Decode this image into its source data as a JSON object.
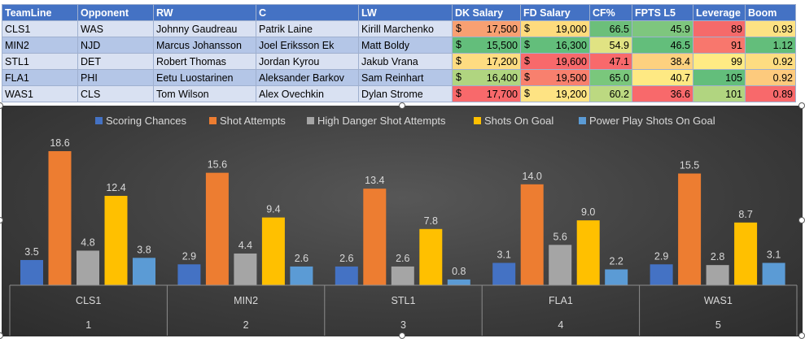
{
  "table": {
    "headers": [
      "TeamLine",
      "Opponent",
      "RW",
      "C",
      "LW",
      "DK Salary",
      "FD Salary",
      "CF%",
      "FPTS L5",
      "Leverage",
      "Boom"
    ],
    "currency": "$",
    "rows": [
      {
        "team": "CLS1",
        "opp": "WAS",
        "rw": "Johnny Gaudreau",
        "c": "Patrik Laine",
        "lw": "Kirill Marchenko",
        "dk": "17,500",
        "fd": "19,000",
        "cf": "66.5",
        "fpts": "45.9",
        "lev": "89",
        "boom": "0.93",
        "colors": {
          "dk": "#f8a072",
          "fd": "#fedb7d",
          "cf": "#6cbf7a",
          "fpts": "#7ec67e",
          "lev": "#f56a6a",
          "boom": "#fde283"
        }
      },
      {
        "team": "MIN2",
        "opp": "NJD",
        "rw": "Marcus Johansson",
        "c": "Joel Eriksson Ek",
        "lw": "Matt Boldy",
        "dk": "15,500",
        "fd": "16,300",
        "cf": "54.9",
        "fpts": "46.5",
        "lev": "91",
        "boom": "1.12",
        "colors": {
          "dk": "#63be7b",
          "fd": "#63be7b",
          "cf": "#e0e383",
          "fpts": "#63be7b",
          "lev": "#f8776d",
          "boom": "#63be7b"
        }
      },
      {
        "team": "STL1",
        "opp": "DET",
        "rw": "Robert Thomas",
        "c": "Jordan Kyrou",
        "lw": "Jakub Vrana",
        "dk": "17,200",
        "fd": "19,600",
        "cf": "47.1",
        "fpts": "38.4",
        "lev": "99",
        "boom": "0.92",
        "colors": {
          "dk": "#fedc81",
          "fd": "#f8696b",
          "cf": "#f8696b",
          "fpts": "#fdd17f",
          "lev": "#ffeb84",
          "boom": "#fedd81"
        }
      },
      {
        "team": "FLA1",
        "opp": "PHI",
        "rw": "Eetu Luostarinen",
        "c": "Aleksander Barkov",
        "lw": "Sam Reinhart",
        "dk": "16,400",
        "fd": "19,500",
        "cf": "65.0",
        "fpts": "40.7",
        "lev": "105",
        "boom": "0.92",
        "colors": {
          "dk": "#b0d580",
          "fd": "#f8806e",
          "cf": "#7ac77c",
          "fpts": "#fee983",
          "lev": "#63be7b",
          "boom": "#fdca7d"
        }
      },
      {
        "team": "WAS1",
        "opp": "CLS",
        "rw": "Tom Wilson",
        "c": "Alex Ovechkin",
        "lw": "Dylan Strome",
        "dk": "17,700",
        "fd": "19,200",
        "cf": "60.2",
        "fpts": "36.6",
        "lev": "101",
        "boom": "0.89",
        "colors": {
          "dk": "#f8696b",
          "fd": "#fee383",
          "cf": "#bcd981",
          "fpts": "#f8696b",
          "lev": "#b1d580",
          "boom": "#f8696b"
        }
      }
    ]
  },
  "chart_data": {
    "type": "bar",
    "title": "",
    "xlabel": "",
    "ylabel": "",
    "ylim": [
      0,
      20
    ],
    "grid": false,
    "legend_position": "top",
    "categories": [
      {
        "label": "CLS1",
        "sub": "1"
      },
      {
        "label": "MIN2",
        "sub": "2"
      },
      {
        "label": "STL1",
        "sub": "3"
      },
      {
        "label": "FLA1",
        "sub": "4"
      },
      {
        "label": "WAS1",
        "sub": "5"
      }
    ],
    "series": [
      {
        "name": "Scoring Chances",
        "color": "#4472c4",
        "values": [
          3.5,
          2.9,
          2.6,
          3.1,
          2.9
        ]
      },
      {
        "name": "Shot Attempts",
        "color": "#ed7d31",
        "values": [
          18.6,
          15.6,
          13.4,
          14.0,
          15.5
        ]
      },
      {
        "name": "High Danger Shot Attempts",
        "color": "#a5a5a5",
        "values": [
          4.8,
          4.4,
          2.6,
          5.6,
          2.8
        ]
      },
      {
        "name": "Shots On Goal",
        "color": "#ffc000",
        "values": [
          12.4,
          9.4,
          7.8,
          9.0,
          8.7
        ]
      },
      {
        "name": "Power Play Shots On Goal",
        "color": "#5b9bd5",
        "values": [
          3.8,
          2.6,
          0.8,
          2.2,
          3.1
        ]
      }
    ]
  }
}
